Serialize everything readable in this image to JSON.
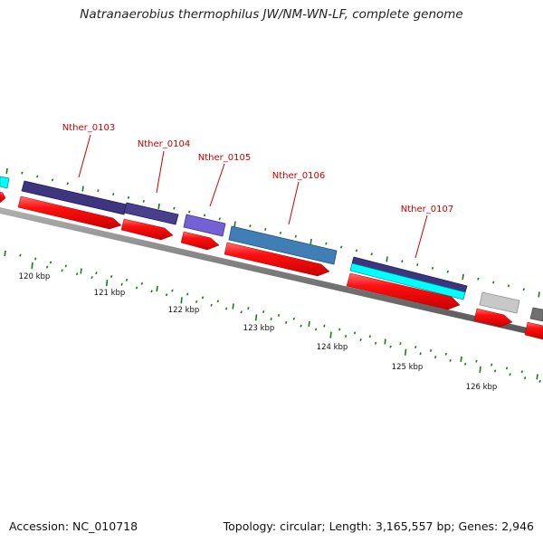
{
  "title": "Natranaerobius thermophilus JW/NM-WN-LF, complete genome",
  "footer": {
    "accession": "Accession: NC_010718",
    "stats": "Topology: circular; Length: 3,165,557 bp; Genes: 2,946"
  },
  "gene_labels": [
    "Nther_0103",
    "Nther_0104",
    "Nther_0105",
    "Nther_0106",
    "Nther_0107"
  ],
  "kbp_labels": [
    "120 kbp",
    "121 kbp",
    "122 kbp",
    "123 kbp",
    "124 kbp",
    "125 kbp",
    "126 kbp"
  ],
  "colors": {
    "cds": "#ff0000",
    "backbone": "#808080",
    "ticks": "#1a7a1a",
    "labels": "#cc0000",
    "dark_purple": "#3d3580",
    "light_purple": "#7461d6",
    "steel_blue": "#3f7fb5",
    "cyan": "#00ffff",
    "light_gray": "#c8c8c8",
    "dark_gray": "#707070"
  }
}
